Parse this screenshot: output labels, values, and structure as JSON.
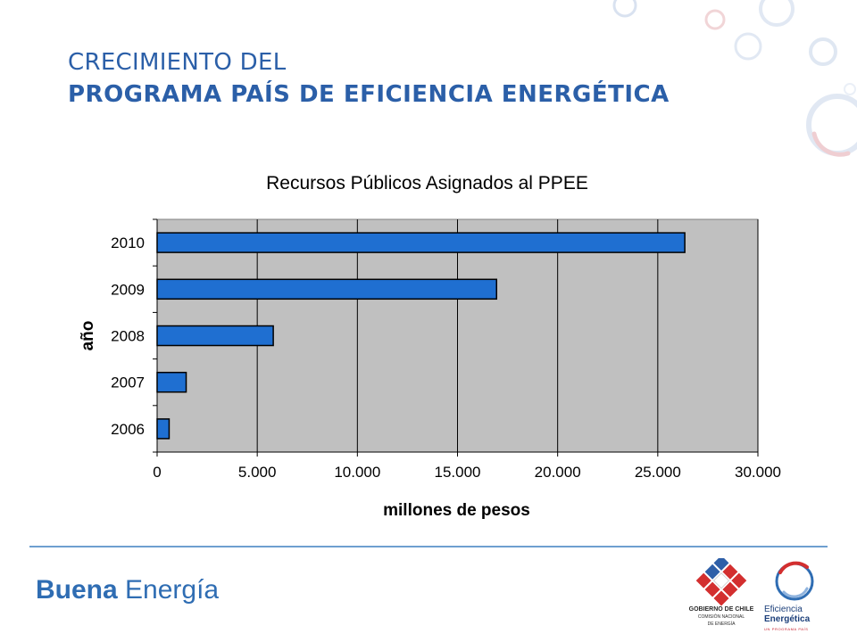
{
  "slide": {
    "title_line1": "CRECIMIENTO DEL",
    "title_line2": "PROGRAMA PAÍS DE EFICIENCIA ENERGÉTICA"
  },
  "colors": {
    "title": "#2b5fa8",
    "bar_fill": "#1f6fd1",
    "plot_background": "#c0c0c0",
    "footer_brand": "#2f6db3",
    "divider": "#6e9fd0"
  },
  "chart_data": {
    "type": "bar",
    "orientation": "horizontal",
    "title": "Recursos Públicos Asignados al PPEE",
    "xlabel": "millones de pesos",
    "ylabel": "año",
    "categories": [
      "2006",
      "2007",
      "2008",
      "2009",
      "2010"
    ],
    "values": [
      600,
      1450,
      5800,
      16950,
      26350
    ],
    "xlim": [
      0,
      30000
    ],
    "xticks": [
      0,
      5000,
      10000,
      15000,
      20000,
      25000,
      30000
    ],
    "xtick_labels": [
      "0",
      "5.000",
      "10.000",
      "15.000",
      "20.000",
      "25.000",
      "30.000"
    ],
    "grid": "vertical",
    "legend": "none"
  },
  "footer": {
    "brand_bold": "Buena",
    "brand_regular": " Energía",
    "gov_logo_line1": "GOBIERNO DE CHILE",
    "gov_logo_line2": "COMISIÓN NACIONAL",
    "gov_logo_line3": "DE ENERGÍA",
    "ee_logo_line1": "Eficiencia",
    "ee_logo_line2": "Energética",
    "ee_logo_line3": "UN PROGRAMA PAÍS"
  }
}
